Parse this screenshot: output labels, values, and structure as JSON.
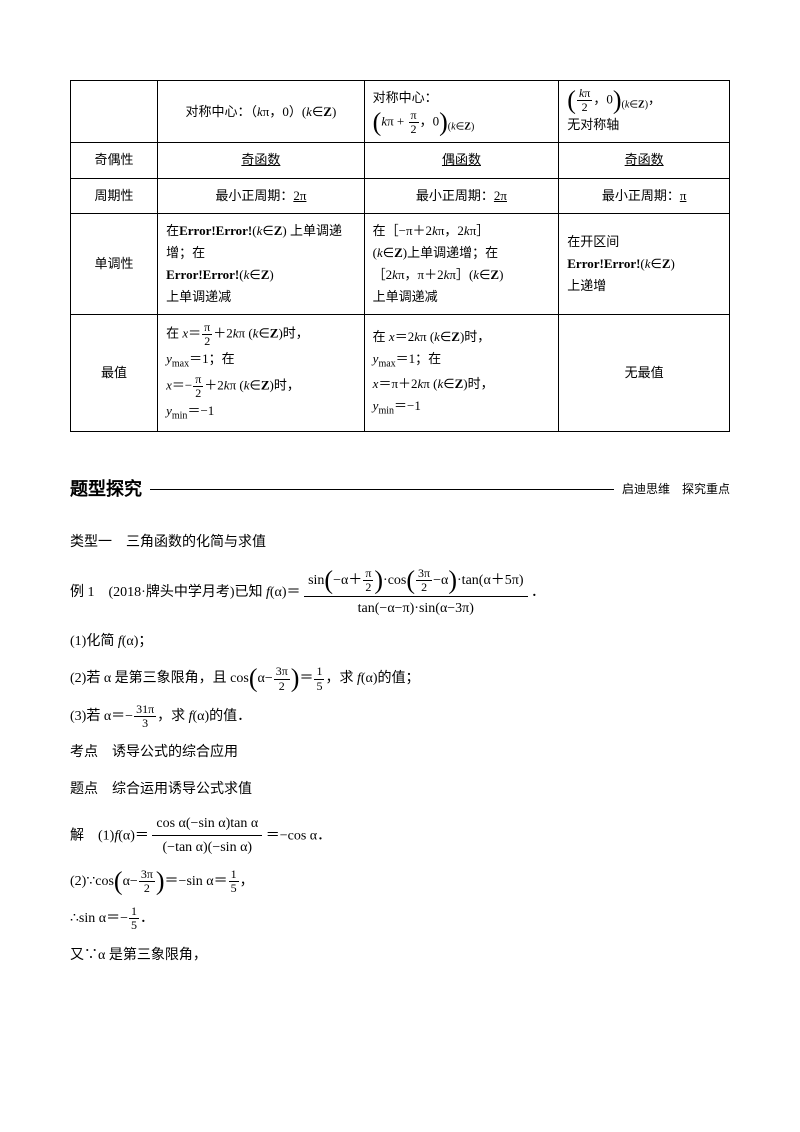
{
  "table": {
    "r1": {
      "c1": "对称中心：（<span class='italic'>k</span>π，0）(<span class='italic'>k</span>∈<b>Z</b>)",
      "c2": "对称中心：<br><span class='paren-big'>(</span><span class='italic'>k</span>π + <span class='frac'><span class='num'>π</span><span class='den'>2</span></span>，0<span class='paren-big'>)</span><span class='sub'>(<span class='italic'>k</span>∈<b>Z</b>)</span>",
      "c3": "<span class='paren-big'>(</span><span class='frac'><span class='num'><span class='italic'>k</span>π</span><span class='den'>2</span></span>，0<span class='paren-big'>)</span><span class='sub'>(<span class='italic'>k</span>∈<b>Z</b>)</span>，<br>无对称轴"
    },
    "r2": {
      "c0": "奇偶性",
      "c1": "奇函数",
      "c2": "偶函数",
      "c3": "奇函数"
    },
    "r3": {
      "c0": "周期性",
      "c1_pre": "最小正周期：",
      "c1_u": "2π",
      "c2_pre": "最小正周期：",
      "c2_u": "2π",
      "c3_pre": "最小正周期：",
      "c3_u": "π"
    },
    "r4": {
      "c0": "单调性",
      "c1": "在<b>Error!Error!</b>(<span class='italic'>k</span>∈<b>Z</b>) 上单调递增；在<br><b>Error!Error!</b>(<span class='italic'>k</span>∈<b>Z</b>)<br>上单调递减",
      "c2": "在［−π＋2<span class='italic'>k</span>π，2<span class='italic'>k</span>π］<br>(<span class='italic'>k</span>∈<b>Z</b>)上单调递增；在<br>［2<span class='italic'>k</span>π，π＋2<span class='italic'>k</span>π］(<span class='italic'>k</span>∈<b>Z</b>)<br>上单调递减",
      "c3": "在开区间<br><b>Error!Error!</b>(<span class='italic'>k</span>∈<b>Z</b>)<br>上递增"
    },
    "r5": {
      "c0": "最值",
      "c1": "在 <span class='italic'>x</span>＝<span class='frac'><span class='num'>π</span><span class='den'>2</span></span>＋2<span class='italic'>k</span>π (<span class='italic'>k</span>∈<b>Z</b>)时，<br><span class='italic'>y</span><span class='sub'>max</span>＝1；在<br><span class='italic'>x</span>＝−<span class='frac'><span class='num'>π</span><span class='den'>2</span></span>＋2<span class='italic'>k</span>π (<span class='italic'>k</span>∈<b>Z</b>)时，<br><span class='italic'>y</span><span class='sub'>min</span>＝−1",
      "c2": "在 <span class='italic'>x</span>＝2<span class='italic'>k</span>π (<span class='italic'>k</span>∈<b>Z</b>)时，<br><span class='italic'>y</span><span class='sub'>max</span>＝1；在<br><span class='italic'>x</span>＝π＋2<span class='italic'>k</span>π (<span class='italic'>k</span>∈<b>Z</b>)时，<br><span class='italic'>y</span><span class='sub'>min</span>＝−1",
      "c3": "无最值"
    }
  },
  "section": {
    "title": "题型探究",
    "sub": "启迪思维　探究重点"
  },
  "body": {
    "p1": "类型一　三角函数的化简与求值",
    "p2_pre": "例 1　(2018·牌头中学月考)已知 <span class='italic'>f</span>(α)＝",
    "p2_num": "sin<span class='paren-big'>(</span>−α＋<span class='frac'><span class='num'>π</span><span class='den'>2</span></span><span class='paren-big'>)</span>·cos<span class='paren-big'>(</span><span class='frac'><span class='num'>3π</span><span class='den'>2</span></span>−α<span class='paren-big'>)</span>·tan(α＋5π)",
    "p2_den": "tan(−α−π)·sin(α−3π)",
    "p2_suf": "．",
    "p3": "(1)化简 <span class='italic'>f</span>(α)；",
    "p4": "(2)若 α 是第三象限角，且 cos<span class='paren-big'>(</span>α−<span class='frac'><span class='num'>3π</span><span class='den'>2</span></span><span class='paren-big'>)</span>＝<span class='frac'><span class='num'>1</span><span class='den'>5</span></span>，求 <span class='italic'>f</span>(α)的值；",
    "p5": "(3)若 α＝−<span class='frac'><span class='num'>31π</span><span class='den'>3</span></span>，求 <span class='italic'>f</span>(α)的值．",
    "p6": "考点　诱导公式的综合应用",
    "p7": "题点　综合运用诱导公式求值",
    "p8_pre": "解　(1)<span class='italic'>f</span>(α)＝",
    "p8_num": "cos α(−sin α)tan α",
    "p8_den": "(−tan α)(−sin α)",
    "p8_suf": "＝−cos α．",
    "p9": "(2)∵cos<span class='paren-big'>(</span>α−<span class='frac'><span class='num'>3π</span><span class='den'>2</span></span><span class='paren-big'>)</span>＝−sin α＝<span class='frac'><span class='num'>1</span><span class='den'>5</span></span>，",
    "p10": "∴sin α＝−<span class='frac'><span class='num'>1</span><span class='den'>5</span></span>．",
    "p11": "又∵α 是第三象限角，"
  }
}
